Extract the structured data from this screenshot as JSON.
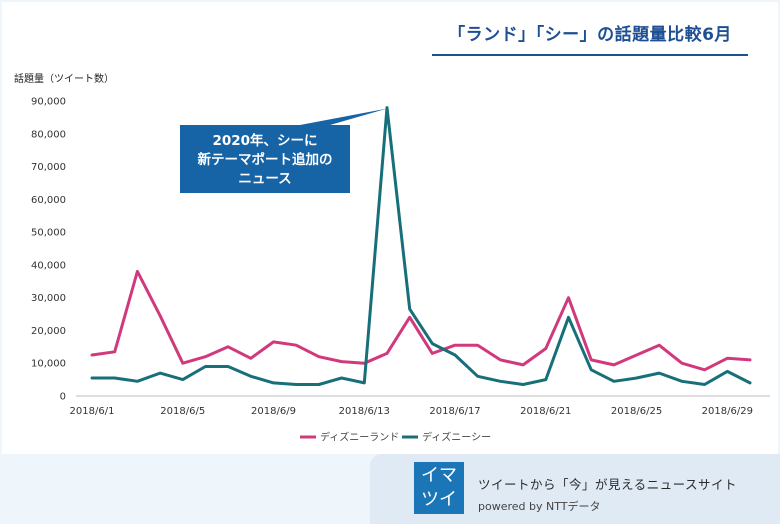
{
  "header": {
    "title": "「ランド」「シー」の話題量比較6月"
  },
  "footer": {
    "logo_line1": "イマ",
    "logo_line2": "ツイ",
    "tagline": "ツイートから「今」が見えるニュースサイト",
    "powered_by": "powered by  NTTデータ"
  },
  "chart_data": {
    "type": "line",
    "ylabel": "話題量（ツイート数）",
    "ylim": [
      0,
      90000
    ],
    "yticks": [
      0,
      10000,
      20000,
      30000,
      40000,
      50000,
      60000,
      70000,
      80000,
      90000
    ],
    "ytick_labels": [
      "0",
      "10,000",
      "20,000",
      "30,000",
      "40,000",
      "50,000",
      "60,000",
      "70,000",
      "80,000",
      "90,000"
    ],
    "x": [
      "2018/6/1",
      "2018/6/2",
      "2018/6/3",
      "2018/6/4",
      "2018/6/5",
      "2018/6/6",
      "2018/6/7",
      "2018/6/8",
      "2018/6/9",
      "2018/6/10",
      "2018/6/11",
      "2018/6/12",
      "2018/6/13",
      "2018/6/14",
      "2018/6/15",
      "2018/6/16",
      "2018/6/17",
      "2018/6/18",
      "2018/6/19",
      "2018/6/20",
      "2018/6/21",
      "2018/6/22",
      "2018/6/23",
      "2018/6/24",
      "2018/6/25",
      "2018/6/26",
      "2018/6/27",
      "2018/6/28",
      "2018/6/29",
      "2018/6/30"
    ],
    "xtick_labels": [
      "2018/6/1",
      "2018/6/5",
      "2018/6/9",
      "2018/6/13",
      "2018/6/17",
      "2018/6/21",
      "2018/6/25",
      "2018/6/29"
    ],
    "series": [
      {
        "name": "ディズニーランド",
        "color": "#d03a7c",
        "values": [
          12500,
          13500,
          38000,
          24500,
          10000,
          12000,
          15000,
          11500,
          16500,
          15500,
          12000,
          10500,
          10000,
          13000,
          24000,
          13000,
          15500,
          15500,
          11000,
          9500,
          14500,
          30000,
          11000,
          9500,
          12500,
          15500,
          10000,
          8000,
          11500,
          11000
        ]
      },
      {
        "name": "ディズニーシー",
        "color": "#176f7a",
        "values": [
          5500,
          5500,
          4500,
          7000,
          5000,
          9000,
          9000,
          6000,
          4000,
          3500,
          3500,
          5500,
          4000,
          88000,
          26500,
          16000,
          12500,
          6000,
          4500,
          3500,
          5000,
          24000,
          8000,
          4500,
          5500,
          7000,
          4500,
          3500,
          7500,
          4000
        ]
      }
    ],
    "legend": "bottom-center",
    "grid": false,
    "annotation": {
      "text_lines": [
        "2020年、シーに",
        "新テーマポート追加の",
        "ニュース"
      ],
      "target_x": "2018/6/14",
      "color": "#1663a6"
    }
  }
}
